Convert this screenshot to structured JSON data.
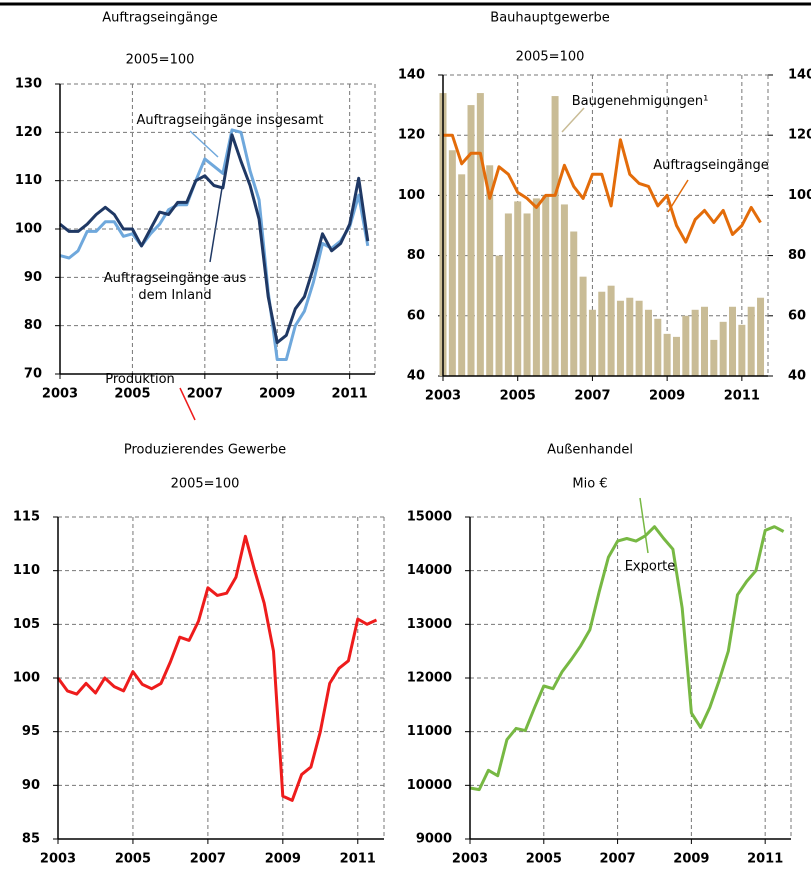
{
  "chart_data": [
    {
      "type": "line",
      "title": "Auftragseingänge",
      "subtitle": "2005=100",
      "x": [
        2003,
        2003.25,
        2003.5,
        2003.75,
        2004,
        2004.25,
        2004.5,
        2004.75,
        2005,
        2005.25,
        2005.5,
        2005.75,
        2006,
        2006.25,
        2006.5,
        2006.75,
        2007,
        2007.25,
        2007.5,
        2007.75,
        2008,
        2008.25,
        2008.5,
        2008.75,
        2009,
        2009.25,
        2009.5,
        2009.75,
        2010,
        2010.25,
        2010.5,
        2010.75,
        2011,
        2011.25,
        2011.5
      ],
      "series": [
        {
          "name": "Auftragseingänge insgesamt",
          "color": "#6fa8dc",
          "values": [
            94.5,
            94,
            95.5,
            99.5,
            99.5,
            101.5,
            101.5,
            98.5,
            99,
            96.5,
            99,
            101,
            104,
            105,
            105,
            110,
            114.5,
            113,
            111.5,
            120.5,
            120,
            112,
            106,
            87,
            73,
            73,
            80,
            83,
            89,
            97,
            96,
            97.5,
            100.5,
            107,
            96.5
          ]
        },
        {
          "name": "Auftragseingänge aus dem Inland",
          "color": "#1f3864",
          "values": [
            101,
            99.5,
            99.5,
            101,
            103,
            104.5,
            103,
            100,
            100,
            96.5,
            100,
            103.5,
            103,
            105.5,
            105.5,
            110,
            111,
            109,
            108.5,
            119.5,
            114,
            109,
            102,
            86,
            76.5,
            78,
            83.5,
            86,
            92,
            99,
            95.5,
            97,
            101,
            110.5,
            97.5
          ]
        }
      ],
      "xlim": [
        2003,
        2011.7
      ],
      "xticks": [
        2003,
        2005,
        2007,
        2009,
        2011
      ],
      "ylim": [
        70,
        130
      ],
      "yticks": [
        70,
        80,
        90,
        100,
        110,
        120,
        130
      ],
      "grid": true
    },
    {
      "type": "combo",
      "title": "Bauhauptgewerbe",
      "subtitle": "2005=100",
      "x": [
        2003,
        2003.25,
        2003.5,
        2003.75,
        2004,
        2004.25,
        2004.5,
        2004.75,
        2005,
        2005.25,
        2005.5,
        2005.75,
        2006,
        2006.25,
        2006.5,
        2006.75,
        2007,
        2007.25,
        2007.5,
        2007.75,
        2008,
        2008.25,
        2008.5,
        2008.75,
        2009,
        2009.25,
        2009.5,
        2009.75,
        2010,
        2010.25,
        2010.5,
        2010.75,
        2011,
        2011.25,
        2011.5
      ],
      "series": [
        {
          "name": "Baugenehmigungen¹",
          "type": "bar",
          "color": "#c9bc96",
          "values": [
            134,
            115,
            107,
            130,
            134,
            110,
            80,
            94,
            98,
            94,
            99,
            100,
            133,
            97,
            88,
            73,
            62,
            68,
            70,
            65,
            66,
            65,
            62,
            59,
            54,
            53,
            60,
            62,
            63,
            52,
            58,
            63,
            57,
            63,
            66
          ]
        },
        {
          "name": "Auftragseingänge",
          "type": "line",
          "axis": "y2",
          "color": "#e36c0a",
          "values": [
            120,
            120,
            110.5,
            114,
            114,
            99,
            109.5,
            107,
            101,
            99,
            96,
            100,
            100,
            110,
            103,
            99,
            107,
            107,
            96.5,
            118.5,
            107,
            104,
            103,
            96.5,
            100,
            90,
            84.5,
            92,
            95,
            91,
            95,
            87,
            90,
            96,
            91
          ]
        }
      ],
      "xlim": [
        2003,
        2011.7
      ],
      "xticks": [
        2003,
        2005,
        2007,
        2009,
        2011
      ],
      "ylim": [
        40,
        140
      ],
      "yticks": [
        40,
        60,
        80,
        100,
        120,
        140
      ],
      "y2lim": [
        40,
        140
      ],
      "y2ticks": [
        40,
        60,
        80,
        100,
        120,
        140
      ],
      "grid": true
    },
    {
      "type": "line",
      "title": "Produzierendes Gewerbe",
      "subtitle": "2005=100",
      "x": [
        2003,
        2003.25,
        2003.5,
        2003.75,
        2004,
        2004.25,
        2004.5,
        2004.75,
        2005,
        2005.25,
        2005.5,
        2005.75,
        2006,
        2006.25,
        2006.5,
        2006.75,
        2007,
        2007.25,
        2007.5,
        2007.75,
        2008,
        2008.25,
        2008.5,
        2008.75,
        2009,
        2009.25,
        2009.5,
        2009.75,
        2010,
        2010.25,
        2010.5,
        2010.75,
        2011,
        2011.25,
        2011.5
      ],
      "series": [
        {
          "name": "Produktion",
          "color": "#ee1c1c",
          "values": [
            100,
            98.8,
            98.5,
            99.5,
            98.6,
            100,
            99.2,
            98.8,
            100.6,
            99.4,
            99,
            99.5,
            101.5,
            103.8,
            103.5,
            105.3,
            108.4,
            107.7,
            107.9,
            109.4,
            113.2,
            110,
            107,
            102.5,
            89,
            88.6,
            91,
            91.7,
            95,
            99.5,
            100.9,
            101.6,
            105.5,
            105,
            105.4
          ]
        }
      ],
      "xlim": [
        2003,
        2011.7
      ],
      "xticks": [
        2003,
        2005,
        2007,
        2009,
        2011
      ],
      "ylim": [
        85,
        115
      ],
      "yticks": [
        85,
        90,
        95,
        100,
        105,
        110,
        115
      ],
      "grid": true
    },
    {
      "type": "line",
      "title": "Außenhandel",
      "subtitle": "Mio €",
      "x": [
        2003,
        2003.25,
        2003.5,
        2003.75,
        2004,
        2004.25,
        2004.5,
        2004.75,
        2005,
        2005.25,
        2005.5,
        2005.75,
        2006,
        2006.25,
        2006.5,
        2006.75,
        2007,
        2007.25,
        2007.5,
        2007.75,
        2008,
        2008.25,
        2008.5,
        2008.75,
        2009,
        2009.25,
        2009.5,
        2009.75,
        2010,
        2010.25,
        2010.5,
        2010.75,
        2011,
        2011.25,
        2011.5
      ],
      "series": [
        {
          "name": "Exporte",
          "color": "#77b843",
          "values": [
            9950,
            9920,
            10280,
            10180,
            10850,
            11060,
            11020,
            11450,
            11850,
            11800,
            12120,
            12350,
            12600,
            12900,
            13600,
            14250,
            14550,
            14600,
            14550,
            14650,
            14820,
            14600,
            14400,
            13300,
            11350,
            11080,
            11450,
            11950,
            12500,
            13550,
            13800,
            14000,
            14750,
            14820,
            14730
          ]
        }
      ],
      "xlim": [
        2003,
        2011.7
      ],
      "xticks": [
        2003,
        2005,
        2007,
        2009,
        2011
      ],
      "ylim": [
        9000,
        15000
      ],
      "yticks": [
        9000,
        10000,
        11000,
        12000,
        13000,
        14000,
        15000
      ],
      "grid": true
    }
  ]
}
